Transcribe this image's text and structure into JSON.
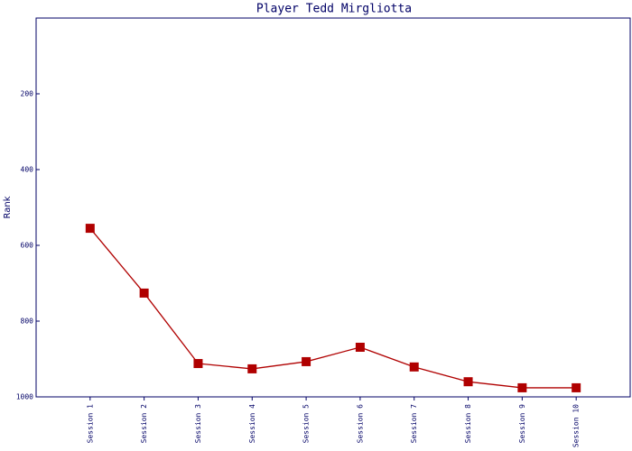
{
  "chart_data": {
    "type": "line",
    "title": "Player Tedd Mirgliotta",
    "y_label": "Rank",
    "categories": [
      "Session 1",
      "Session 2",
      "Session 3",
      "Session 4",
      "Session 5",
      "Session 6",
      "Session 7",
      "Session 8",
      "Session 9",
      "Session 10"
    ],
    "series": [
      {
        "name": "Rank",
        "color": "#b00000",
        "values": [
          555,
          726,
          912,
          926,
          907,
          869,
          921,
          960,
          976,
          976
        ]
      }
    ],
    "ylim": [
      0,
      1000
    ],
    "y_inverted": true,
    "yticks": [
      200,
      400,
      600,
      800,
      1000
    ],
    "grid": false
  }
}
